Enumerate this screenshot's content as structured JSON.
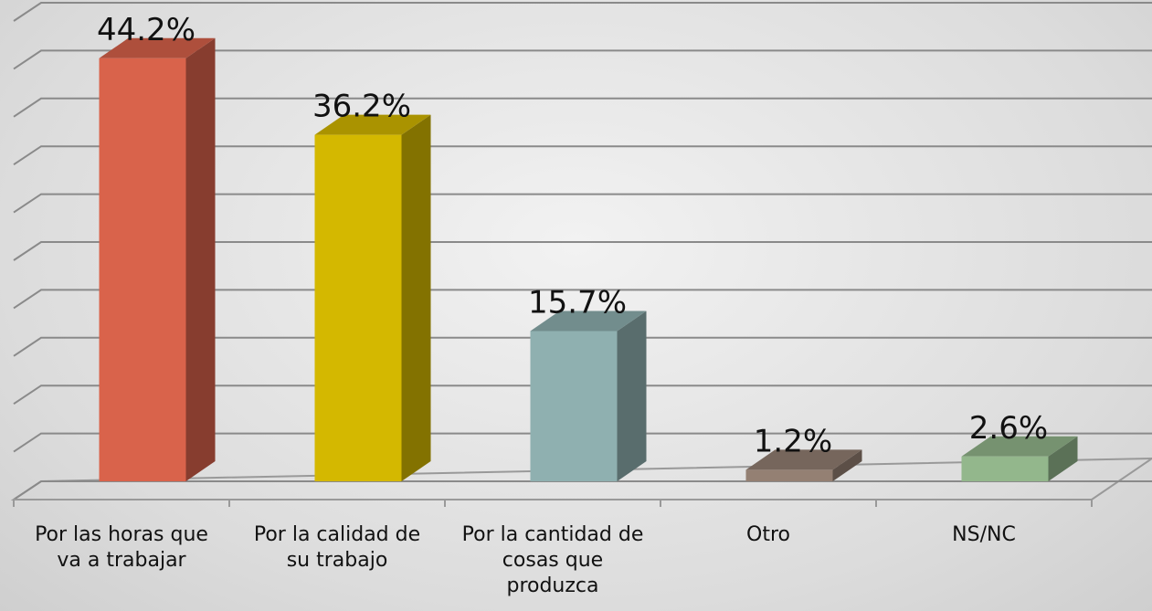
{
  "chart_data": {
    "type": "bar3d",
    "categories": [
      "Por las horas que va a trabajar",
      "Por la calidad de su trabajo",
      "Por la cantidad de cosas que produzca",
      "Otro",
      "NS/NC"
    ],
    "values": [
      44.2,
      36.2,
      15.7,
      1.2,
      2.6
    ],
    "value_labels": [
      "44.2%",
      "36.2%",
      "15.7%",
      "1.2%",
      "2.6%"
    ],
    "colors": [
      "#d9634b",
      "#d4b800",
      "#8fb0b0",
      "#948073",
      "#93b78c"
    ],
    "ylim": [
      0,
      50
    ],
    "yticks": [
      0,
      5,
      10,
      15,
      20,
      25,
      30,
      35,
      40,
      45,
      50
    ],
    "grid": true
  }
}
